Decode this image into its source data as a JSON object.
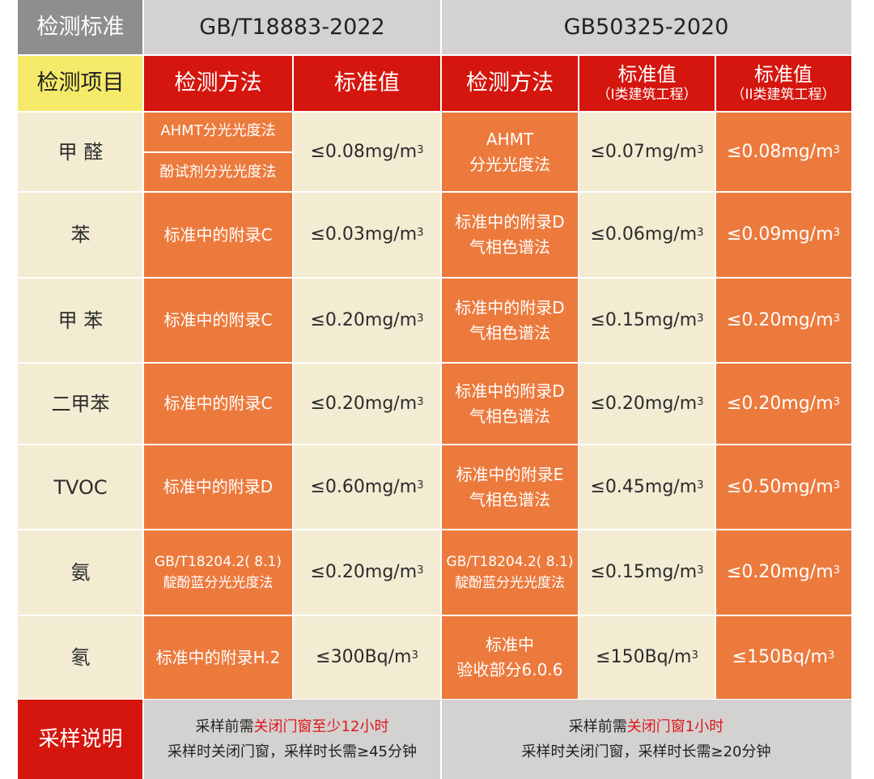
{
  "header": {
    "label": "检测标准",
    "standard_a": "GB/T18883-2022",
    "standard_b": "GB50325-2020"
  },
  "subheader": {
    "item_label": "检测项目",
    "a_method": "检测方法",
    "a_value": "标准值",
    "b_method": "检测方法",
    "b_value1": "标准值",
    "b_value1_sub": "（I类建筑工程）",
    "b_value2": "标准值",
    "b_value2_sub": "（II类建筑工程）"
  },
  "rows": [
    {
      "item": "甲 醛",
      "a_method_1": "AHMT分光光度法",
      "a_method_2": "酚试剂分光光度法",
      "a_value": "≤0.08mg/m",
      "b_method_1": "AHMT",
      "b_method_2": "分光光度法",
      "b_value1": "≤0.07mg/m",
      "b_value2": "≤0.08mg/m"
    },
    {
      "item": "苯",
      "a_method_1": "标准中的附录C",
      "a_value": "≤0.03mg/m",
      "b_method_1": "标准中的附录D",
      "b_method_2": "气相色谱法",
      "b_value1": "≤0.06mg/m",
      "b_value2": "≤0.09mg/m"
    },
    {
      "item": "甲 苯",
      "a_method_1": "标准中的附录C",
      "a_value": "≤0.20mg/m",
      "b_method_1": "标准中的附录D",
      "b_method_2": "气相色谱法",
      "b_value1": "≤0.15mg/m",
      "b_value2": "≤0.20mg/m"
    },
    {
      "item": "二甲苯",
      "a_method_1": "标准中的附录C",
      "a_value": "≤0.20mg/m",
      "b_method_1": "标准中的附录D",
      "b_method_2": "气相色谱法",
      "b_value1": "≤0.20mg/m",
      "b_value2": "≤0.20mg/m"
    },
    {
      "item": "TVOC",
      "a_method_1": "标准中的附录D",
      "a_value": "≤0.60mg/m",
      "b_method_1": "标准中的附录E",
      "b_method_2": "气相色谱法",
      "b_value1": "≤0.45mg/m",
      "b_value2": "≤0.50mg/m"
    },
    {
      "item": "氨",
      "a_method_1": "GB/T18204.2( 8.1)",
      "a_method_2": "靛酚蓝分光光度法",
      "a_value": "≤0.20mg/m",
      "b_method_1": "GB/T18204.2( 8.1)",
      "b_method_2": "靛酚蓝分光光度法",
      "b_value1": "≤0.15mg/m",
      "b_value2": "≤0.20mg/m"
    },
    {
      "item": "氡",
      "a_method_1": "标准中的附录H.2",
      "a_value": "≤300Bq/m",
      "b_method_1": "标准中",
      "b_method_2": "验收部分6.0.6",
      "b_value1": "≤150Bq/m",
      "b_value2": "≤150Bq/m"
    }
  ],
  "unit_superscript": "3",
  "sampling": {
    "label": "采样说明",
    "a_line1_pre": "采样前需",
    "a_line1_hl": "关闭门窗至少12小时",
    "a_line2": "采样时关闭门窗，采样时长需≥45分钟",
    "b_line1_pre": "采样前需",
    "b_line1_hl": "关闭门窗1小时",
    "b_line2": "采样时关闭门窗，采样时长需≥20分钟"
  },
  "colors": {
    "header_gray": "#d3d2d0",
    "label_gray": "#8e8e8e",
    "header_red": "#d4160e",
    "item_yellow": "#f6ea6a",
    "cream": "#f3ecd3",
    "orange": "#ec7a3d",
    "highlight_red": "#e0161b"
  }
}
